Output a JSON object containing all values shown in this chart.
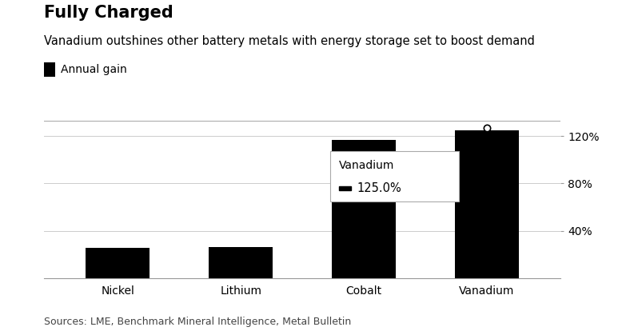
{
  "title": "Fully Charged",
  "subtitle": "Vanadium outshines other battery metals with energy storage set to boost demand",
  "legend_label": "Annual gain",
  "categories": [
    "Nickel",
    "Lithium",
    "Cobalt",
    "Vanadium"
  ],
  "values": [
    25.5,
    26.1,
    116.5,
    125.0
  ],
  "bar_color": "#000000",
  "background_color": "#ffffff",
  "yticks": [
    40,
    80,
    120
  ],
  "ylim": [
    0,
    133
  ],
  "source": "Sources: LME, Benchmark Mineral Intelligence, Metal Bulletin",
  "tooltip_label": "Vanadium",
  "tooltip_value": "125.0%",
  "grid_color": "#cccccc",
  "title_fontsize": 15,
  "subtitle_fontsize": 10.5,
  "tick_fontsize": 10,
  "source_fontsize": 9,
  "bar_width": 0.52
}
